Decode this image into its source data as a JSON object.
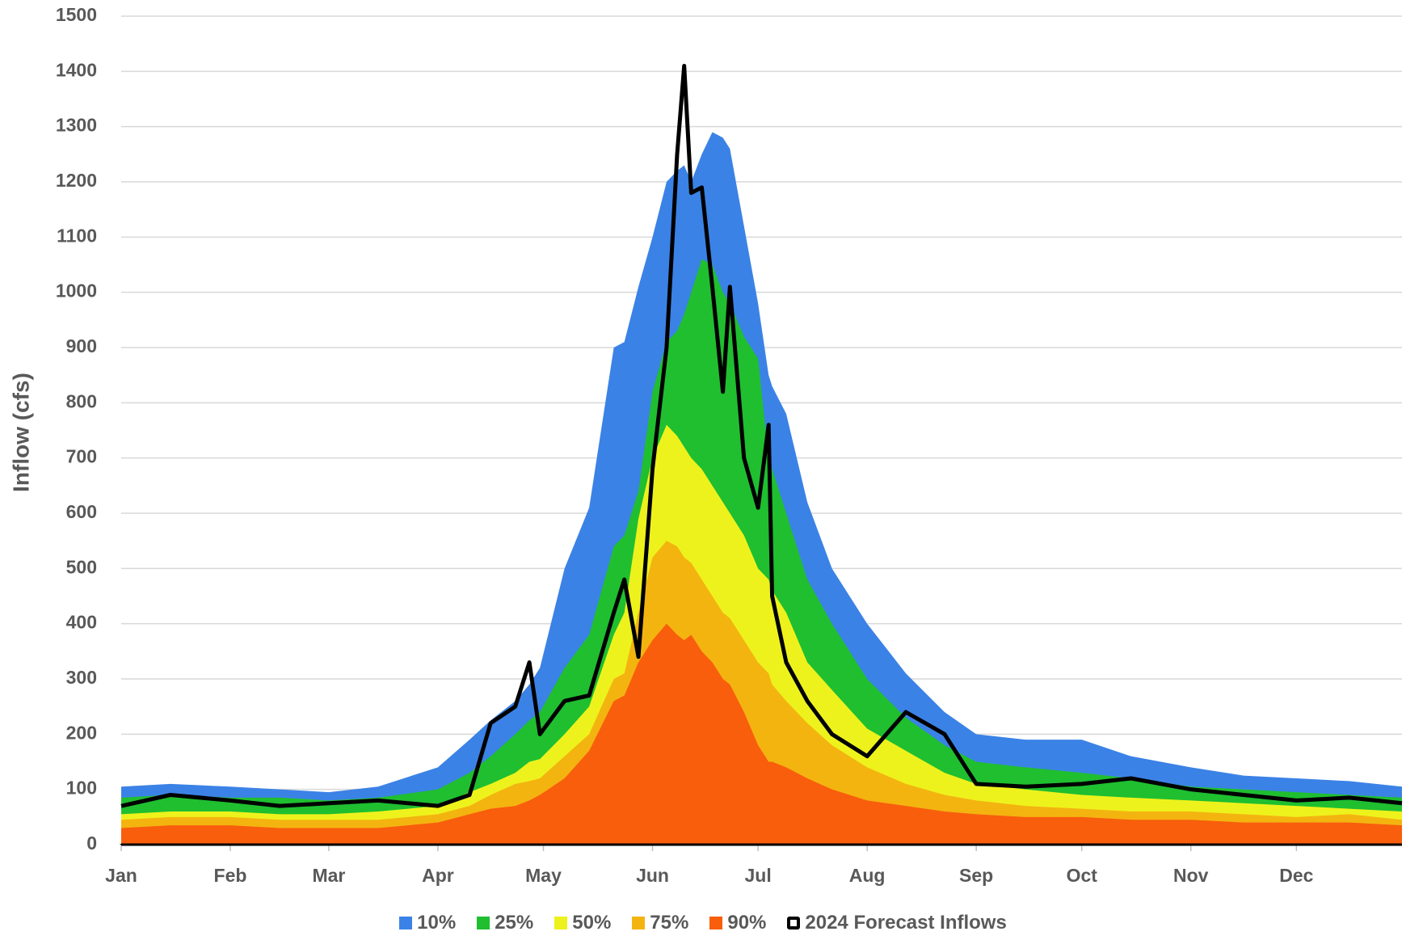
{
  "chart_data": {
    "type": "area",
    "y_label": "Inflow (cfs)",
    "x": [
      1,
      15,
      32,
      46,
      60,
      74,
      91,
      100,
      106,
      113,
      117,
      120,
      127,
      134,
      141,
      144,
      148,
      152,
      156,
      159,
      161,
      163,
      166,
      169,
      172,
      174,
      178,
      182,
      185,
      186,
      190,
      196,
      203,
      213,
      224,
      235,
      244,
      258,
      274,
      288,
      305,
      320,
      335,
      350,
      365
    ],
    "xlim": [
      1,
      365
    ],
    "xticks": [
      {
        "value": 1,
        "label": "Jan"
      },
      {
        "value": 32,
        "label": "Feb"
      },
      {
        "value": 60,
        "label": "Mar"
      },
      {
        "value": 91,
        "label": "Apr"
      },
      {
        "value": 121,
        "label": "May"
      },
      {
        "value": 152,
        "label": "Jun"
      },
      {
        "value": 182,
        "label": "Jul"
      },
      {
        "value": 213,
        "label": "Aug"
      },
      {
        "value": 244,
        "label": "Sep"
      },
      {
        "value": 274,
        "label": "Oct"
      },
      {
        "value": 305,
        "label": "Nov"
      },
      {
        "value": 335,
        "label": "Dec"
      }
    ],
    "ylim": [
      0,
      1500
    ],
    "yticks": [
      0,
      100,
      200,
      300,
      400,
      500,
      600,
      700,
      800,
      900,
      1000,
      1100,
      1200,
      1300,
      1400,
      1500
    ],
    "grid": true,
    "series": [
      {
        "name": "10%",
        "color": "#3b82e6",
        "kind": "area",
        "values": [
          105,
          110,
          105,
          100,
          95,
          105,
          140,
          190,
          225,
          260,
          290,
          320,
          500,
          610,
          900,
          910,
          1010,
          1100,
          1200,
          1220,
          1230,
          1200,
          1250,
          1290,
          1280,
          1260,
          1120,
          980,
          850,
          830,
          780,
          620,
          500,
          400,
          310,
          240,
          200,
          190,
          190,
          160,
          140,
          125,
          120,
          115,
          105
        ]
      },
      {
        "name": "25%",
        "color": "#1fbf30",
        "kind": "area",
        "values": [
          85,
          90,
          85,
          85,
          80,
          85,
          100,
          130,
          160,
          200,
          225,
          240,
          320,
          380,
          540,
          560,
          640,
          820,
          910,
          930,
          960,
          1000,
          1060,
          1050,
          1000,
          980,
          920,
          880,
          700,
          680,
          600,
          480,
          400,
          300,
          230,
          180,
          150,
          140,
          130,
          120,
          105,
          100,
          95,
          90,
          85
        ]
      },
      {
        "name": "50%",
        "color": "#eef21c",
        "kind": "area",
        "values": [
          55,
          60,
          60,
          55,
          55,
          60,
          70,
          95,
          110,
          130,
          150,
          155,
          200,
          250,
          380,
          420,
          590,
          700,
          760,
          740,
          720,
          700,
          680,
          650,
          620,
          600,
          560,
          500,
          480,
          460,
          420,
          330,
          280,
          210,
          170,
          130,
          110,
          100,
          90,
          85,
          80,
          75,
          70,
          65,
          60
        ]
      },
      {
        "name": "75%",
        "color": "#f3b410",
        "kind": "area",
        "values": [
          45,
          50,
          50,
          45,
          45,
          45,
          55,
          70,
          90,
          110,
          115,
          120,
          160,
          200,
          300,
          310,
          420,
          520,
          550,
          540,
          520,
          510,
          480,
          450,
          420,
          410,
          370,
          330,
          310,
          290,
          260,
          220,
          180,
          140,
          110,
          90,
          80,
          70,
          65,
          60,
          60,
          55,
          50,
          55,
          45
        ]
      },
      {
        "name": "90%",
        "color": "#f85e0c",
        "kind": "area",
        "values": [
          30,
          35,
          35,
          30,
          30,
          30,
          40,
          55,
          65,
          70,
          80,
          90,
          120,
          170,
          260,
          270,
          330,
          370,
          400,
          380,
          370,
          380,
          350,
          330,
          300,
          290,
          240,
          180,
          150,
          150,
          140,
          120,
          100,
          80,
          70,
          60,
          55,
          50,
          50,
          45,
          45,
          40,
          40,
          40,
          35
        ]
      },
      {
        "name": "2024 Forecast Inflows",
        "color": "#000000",
        "kind": "line",
        "values": [
          70,
          90,
          80,
          70,
          75,
          80,
          70,
          90,
          220,
          250,
          330,
          200,
          260,
          270,
          420,
          480,
          340,
          680,
          900,
          1250,
          1410,
          1180,
          1190,
          1010,
          820,
          1010,
          700,
          610,
          760,
          450,
          330,
          260,
          200,
          160,
          240,
          200,
          110,
          105,
          110,
          120,
          100,
          90,
          80,
          85,
          75
        ]
      }
    ]
  }
}
